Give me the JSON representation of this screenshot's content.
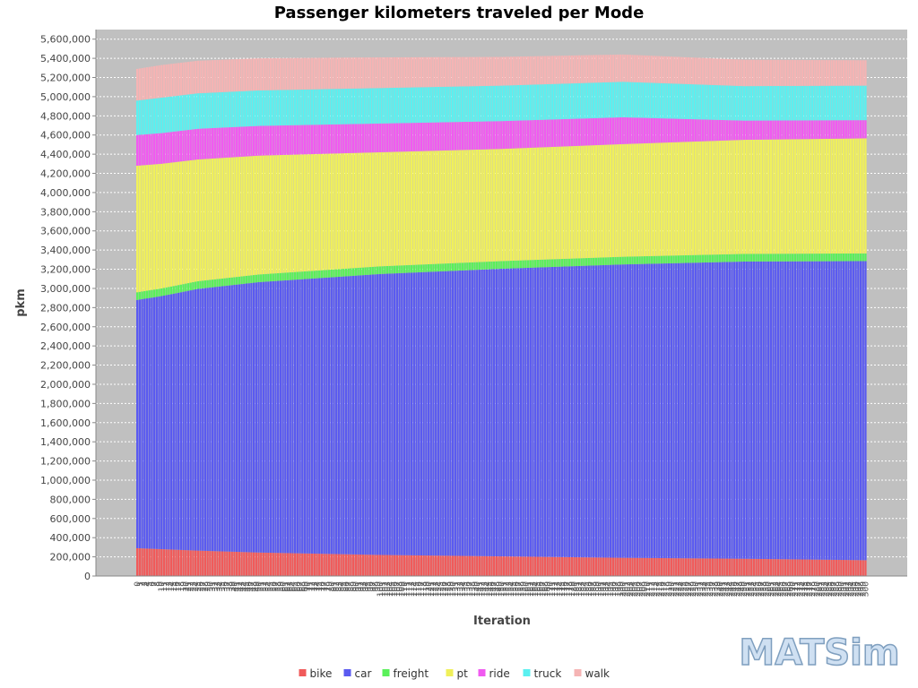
{
  "chart_data": {
    "type": "bar",
    "stacked": true,
    "title": "Passenger kilometers traveled per Mode",
    "xlabel": "Iteration",
    "ylabel": "pkm",
    "ylim": [
      0,
      5700000
    ],
    "yticks": [
      0,
      200000,
      400000,
      600000,
      800000,
      1000000,
      1200000,
      1400000,
      1600000,
      1800000,
      2000000,
      2200000,
      2400000,
      2600000,
      2800000,
      3000000,
      3200000,
      3400000,
      3600000,
      3800000,
      4000000,
      4200000,
      4400000,
      4600000,
      4800000,
      5000000,
      5200000,
      5400000,
      5600000
    ],
    "ytick_labels": [
      "0",
      "200,000",
      "400,000",
      "600,000",
      "800,000",
      "1,000,000",
      "1,200,000",
      "1,400,000",
      "1,600,000",
      "1,800,000",
      "2,000,000",
      "2,200,000",
      "2,400,000",
      "2,600,000",
      "2,800,000",
      "3,000,000",
      "3,200,000",
      "3,400,000",
      "3,600,000",
      "3,800,000",
      "4,000,000",
      "4,200,000",
      "4,400,000",
      "4,600,000",
      "4,800,000",
      "5,000,000",
      "5,200,000",
      "5,400,000",
      "5,600,000"
    ],
    "x": {
      "first_iteration": 0,
      "last_iteration": 300,
      "iteration_count": 301,
      "sample_iterations": [
        0,
        10,
        25,
        50,
        100,
        150,
        200,
        250,
        300
      ]
    },
    "series_colors": {
      "bike": "#f05a5a",
      "car": "#5a5af0",
      "freight": "#5af05a",
      "pt": "#f0f05a",
      "ride": "#f05af0",
      "truck": "#5af0f0",
      "walk": "#f5b4b4"
    },
    "series": [
      {
        "name": "bike",
        "values": [
          290000,
          280000,
          265000,
          245000,
          220000,
          205000,
          190000,
          180000,
          165000
        ]
      },
      {
        "name": "car",
        "values": [
          2590000,
          2640000,
          2730000,
          2820000,
          2930000,
          3000000,
          3060000,
          3100000,
          3120000
        ]
      },
      {
        "name": "freight",
        "values": [
          80000,
          80000,
          80000,
          80000,
          80000,
          80000,
          80000,
          80000,
          80000
        ]
      },
      {
        "name": "pt",
        "values": [
          1320000,
          1300000,
          1270000,
          1240000,
          1190000,
          1170000,
          1175000,
          1190000,
          1200000
        ]
      },
      {
        "name": "ride",
        "values": [
          320000,
          320000,
          320000,
          310000,
          300000,
          290000,
          280000,
          200000,
          190000
        ]
      },
      {
        "name": "truck",
        "values": [
          360000,
          370000,
          370000,
          370000,
          370000,
          370000,
          370000,
          360000,
          360000
        ]
      },
      {
        "name": "walk",
        "values": [
          330000,
          340000,
          340000,
          335000,
          320000,
          300000,
          285000,
          275000,
          265000
        ]
      }
    ],
    "grid": true,
    "legend_position": "bottom",
    "plot_background": "#c0c0c0",
    "gridline_color": "#ffffff"
  },
  "legend": {
    "items": [
      {
        "label": "bike",
        "color": "#f05a5a"
      },
      {
        "label": "car",
        "color": "#5a5af0"
      },
      {
        "label": "freight",
        "color": "#5af05a"
      },
      {
        "label": "pt",
        "color": "#f0f05a"
      },
      {
        "label": "ride",
        "color": "#f05af0"
      },
      {
        "label": "truck",
        "color": "#5af0f0"
      },
      {
        "label": "walk",
        "color": "#f5b4b4"
      }
    ]
  },
  "logo": {
    "text": "MATSim",
    "color": "#cfe0f2",
    "outline_color": "#7f9fbf"
  }
}
